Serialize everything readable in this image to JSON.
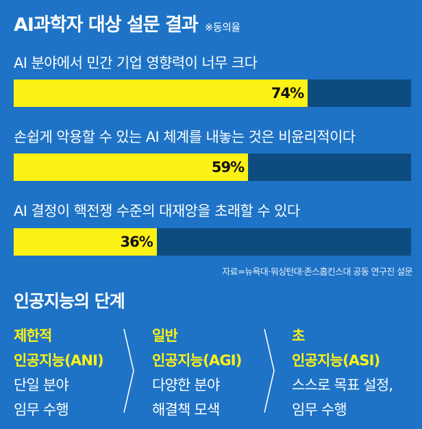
{
  "header": {
    "title": "AI과학자 대상 설문 결과",
    "note": "※동의율"
  },
  "chart_data": {
    "type": "bar",
    "orientation": "horizontal",
    "categories": [
      "AI 분야에서 민간 기업 영향력이 너무 크다",
      "손쉽게 악용할 수 있는 AI 체계를 내놓는 것은 비윤리적이다",
      "AI 결정이 핵전쟁 수준의 대재앙을 초래할 수 있다"
    ],
    "values": [
      74,
      59,
      36
    ],
    "value_labels": [
      "74%",
      "59%",
      "36%"
    ],
    "unit": "%",
    "xlim": [
      0,
      100
    ],
    "colors": {
      "fill": "#fdf216",
      "track": "#0e4c80",
      "background": "#1e73c6"
    }
  },
  "source": "자료=뉴욕대·워싱턴대·존스홉킨스대 공동 연구진 설문",
  "stages": {
    "title": "인공지능의 단계",
    "items": [
      {
        "level": "제한적",
        "name": "인공지능(ANI)",
        "desc1": "단일 분야",
        "desc2": "임무 수행"
      },
      {
        "level": "일반",
        "name": "인공지능(AGI)",
        "desc1": "다양한 분야",
        "desc2": "해결책 모색"
      },
      {
        "level": "초",
        "name": "인공지능(ASI)",
        "desc1": "스스로 목표 설정,",
        "desc2": "임무 수행"
      }
    ],
    "separator_icon": "chevron-right-icon"
  }
}
